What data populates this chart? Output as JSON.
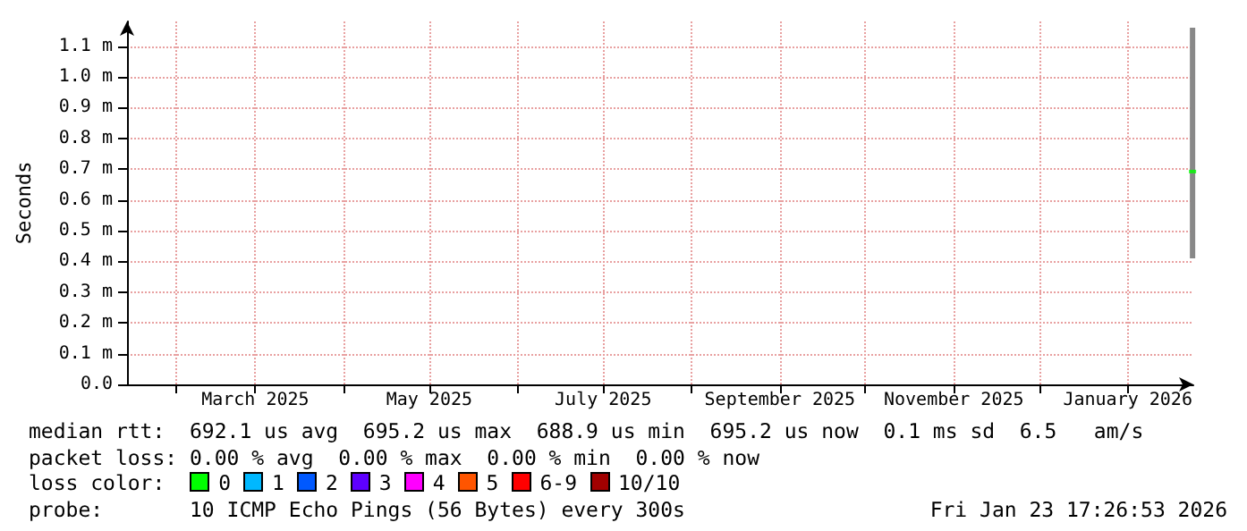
{
  "chart_data": {
    "type": "bar",
    "ylabel": "Seconds",
    "xlim": [
      "2025-01-15",
      "2026-01-24"
    ],
    "xticks": [
      {
        "value": "2025-02-01",
        "label": null
      },
      {
        "value": "2025-03-01",
        "label": "March 2025"
      },
      {
        "value": "2025-04-01",
        "label": null
      },
      {
        "value": "2025-05-01",
        "label": "May 2025"
      },
      {
        "value": "2025-06-01",
        "label": null
      },
      {
        "value": "2025-07-01",
        "label": "July 2025"
      },
      {
        "value": "2025-08-01",
        "label": null
      },
      {
        "value": "2025-09-01",
        "label": "September 2025"
      },
      {
        "value": "2025-10-01",
        "label": null
      },
      {
        "value": "2025-11-01",
        "label": "November 2025"
      },
      {
        "value": "2025-12-01",
        "label": null
      },
      {
        "value": "2026-01-01",
        "label": "January 2026"
      }
    ],
    "ylim": [
      0,
      1.18
    ],
    "yticks": [
      {
        "value": 0,
        "label": "0.0"
      },
      {
        "value": 0.1,
        "label": "0.1 m"
      },
      {
        "value": 0.2,
        "label": "0.2 m"
      },
      {
        "value": 0.3,
        "label": "0.3 m"
      },
      {
        "value": 0.4,
        "label": "0.4 m"
      },
      {
        "value": 0.5,
        "label": "0.5 m"
      },
      {
        "value": 0.6,
        "label": "0.6 m"
      },
      {
        "value": 0.7,
        "label": "0.7 m"
      },
      {
        "value": 0.8,
        "label": "0.8 m"
      },
      {
        "value": 0.9,
        "label": "0.9 m"
      },
      {
        "value": 1.0,
        "label": "1.0 m"
      },
      {
        "value": 1.1,
        "label": "1.1 m"
      }
    ],
    "grid": true,
    "series": [
      {
        "color": "#888888",
        "x": [
          "2026-01-23T17:25"
        ],
        "base": [
          0.41
        ],
        "values": [
          0.75
        ]
      },
      {
        "type": "scatter",
        "color": "#00ff00",
        "x": [
          "2026-01-23T17:25"
        ],
        "values": [
          0.692
        ]
      }
    ],
    "annotations": [
      "median rtt:  692.1 us avg  695.2 us max  688.9 us min  695.2 us now  0.1 ms sd  6.5   am/s",
      "packet loss: 0.00 % avg  0.00 % max  0.00 % min  0.00 % now",
      "loss color:",
      "0",
      "1",
      "2",
      "3",
      "4",
      "5",
      "6-9",
      "10/10",
      "probe:       10 ICMP Echo Pings (56 Bytes) every 300s",
      "Fri Jan 23 17:26:53 2026"
    ]
  }
}
